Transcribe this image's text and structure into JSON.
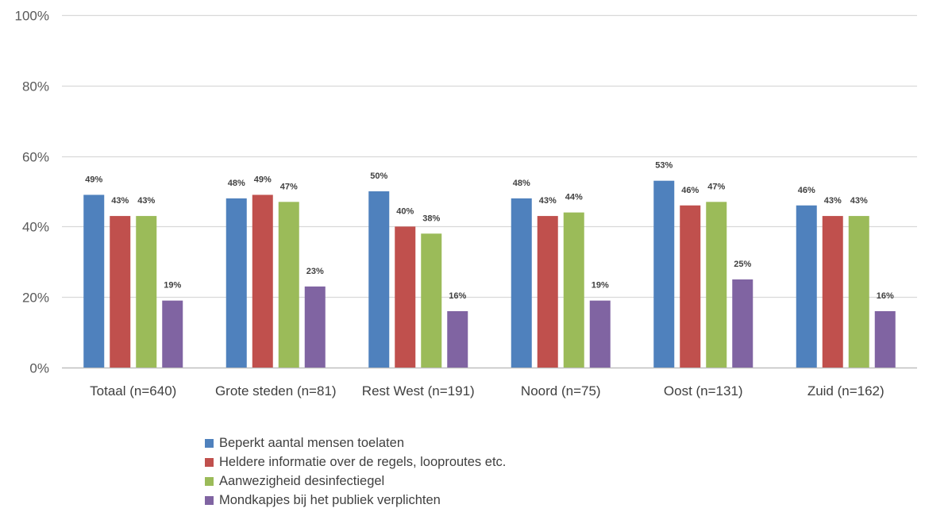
{
  "chart_data": {
    "type": "bar",
    "categories": [
      "Totaal (n=640)",
      "Grote steden (n=81)",
      "Rest West (n=191)",
      "Noord (n=75)",
      "Oost (n=131)",
      "Zuid (n=162)"
    ],
    "series": [
      {
        "name": "Beperkt aantal mensen toelaten",
        "color": "#4f81bd",
        "values": [
          49,
          48,
          50,
          48,
          53,
          46
        ],
        "labels": [
          "49%",
          "48%",
          "50%",
          "48%",
          "53%",
          "46%"
        ]
      },
      {
        "name": "Heldere informatie over de regels, looproutes etc.",
        "color": "#c0504d",
        "values": [
          43,
          49,
          40,
          43,
          46,
          43
        ],
        "labels": [
          "43%",
          "49%",
          "40%",
          "43%",
          "46%",
          "43%"
        ]
      },
      {
        "name": "Aanwezigheid desinfectiegel",
        "color": "#9bbb59",
        "values": [
          43,
          47,
          38,
          44,
          47,
          43
        ],
        "labels": [
          "43%",
          "47%",
          "38%",
          "44%",
          "47%",
          "43%"
        ]
      },
      {
        "name": "Mondkapjes bij het publiek verplichten",
        "color": "#8064a2",
        "values": [
          19,
          23,
          16,
          19,
          25,
          16
        ],
        "labels": [
          "19%",
          "23%",
          "16%",
          "19%",
          "25%",
          "16%"
        ]
      }
    ],
    "ylim": [
      0,
      100
    ],
    "yticks": [
      0,
      20,
      40,
      60,
      80,
      100
    ],
    "ytick_labels": [
      "0%",
      "20%",
      "40%",
      "60%",
      "80%",
      "100%"
    ],
    "grid": true,
    "legend_position": "bottom"
  }
}
